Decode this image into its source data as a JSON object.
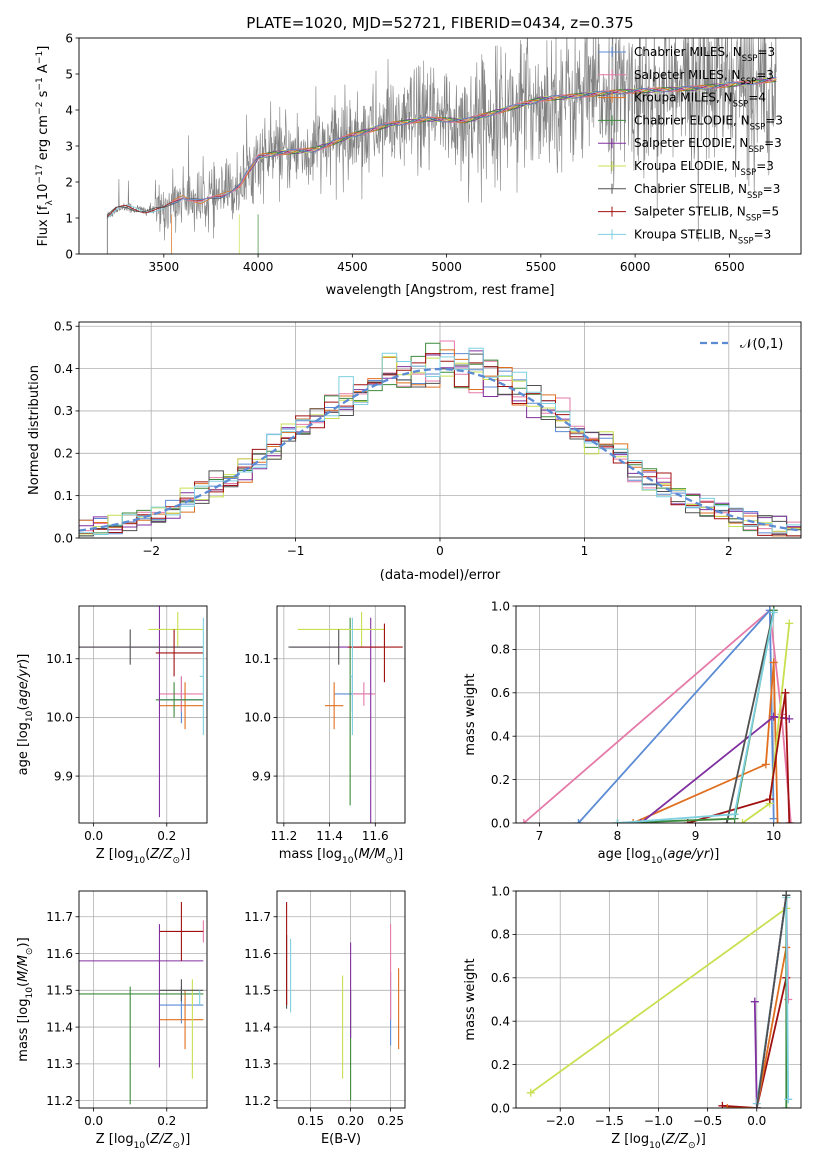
{
  "colors": {
    "chabrier_miles": "#5b8bd4",
    "salpeter_miles": "#e57aa8",
    "kroupa_miles": "#e07020",
    "chabrier_elodie": "#3c8a3c",
    "salpeter_elodie": "#8030a0",
    "kroupa_elodie": "#c8e050",
    "chabrier_stelib": "#505050",
    "salpeter_stelib": "#a01010",
    "kroupa_stelib": "#7fd0e0",
    "gaussian": "#5b8bd4",
    "spectrum": "#808080"
  },
  "legend_entries": [
    {
      "text": "Chabrier MILES, N",
      "sub": "SSP",
      "tail": "=3",
      "color_key": "chabrier_miles"
    },
    {
      "text": "Salpeter MILES, N",
      "sub": "SSP",
      "tail": "=3",
      "color_key": "salpeter_miles"
    },
    {
      "text": "Kroupa MILES, N",
      "sub": "SSP",
      "tail": "=4",
      "color_key": "kroupa_miles"
    },
    {
      "text": "Chabrier ELODIE, N",
      "sub": "SSP",
      "tail": "=3",
      "color_key": "chabrier_elodie"
    },
    {
      "text": "Salpeter ELODIE, N",
      "sub": "SSP",
      "tail": "=3",
      "color_key": "salpeter_elodie"
    },
    {
      "text": "Kroupa ELODIE, N",
      "sub": "SSP",
      "tail": "=3",
      "color_key": "kroupa_elodie"
    },
    {
      "text": "Chabrier STELIB, N",
      "sub": "SSP",
      "tail": "=3",
      "color_key": "chabrier_stelib"
    },
    {
      "text": "Salpeter STELIB, N",
      "sub": "SSP",
      "tail": "=5",
      "color_key": "salpeter_stelib"
    },
    {
      "text": "Kroupa STELIB, N",
      "sub": "SSP",
      "tail": "=3",
      "color_key": "kroupa_stelib"
    }
  ],
  "chart_data": [
    {
      "id": "spectrum",
      "type": "line",
      "title": "PLATE=1020, MJD=52721, FIBERID=0434, z=0.375",
      "xlabel": "wavelength [Angstrom, rest frame]",
      "ylabel_parts": [
        "Flux [f",
        "λ",
        "10",
        "−17",
        " erg cm",
        "−2",
        " s",
        "−1",
        " A",
        "−1",
        "]"
      ],
      "xlim": [
        3050,
        6880
      ],
      "ylim": [
        0,
        6
      ],
      "xticks": [
        3500,
        4000,
        4500,
        5000,
        5500,
        6000,
        6500
      ],
      "yticks": [
        0,
        1,
        2,
        3,
        4,
        5,
        6
      ],
      "continuum_x": [
        3200,
        3250,
        3300,
        3400,
        3500,
        3600,
        3700,
        3800,
        3900,
        4000,
        4100,
        4300,
        4500,
        4700,
        4900,
        5100,
        5300,
        5500,
        5700,
        5900,
        6100,
        6300,
        6500,
        6750
      ],
      "continuum_y": [
        1.05,
        1.25,
        1.3,
        1.2,
        1.25,
        1.6,
        1.45,
        1.6,
        1.9,
        2.7,
        2.8,
        2.9,
        3.3,
        3.6,
        3.75,
        3.7,
        4.0,
        4.3,
        4.4,
        4.5,
        4.55,
        4.6,
        4.7,
        4.85
      ],
      "grid": false
    },
    {
      "id": "residuals",
      "type": "histogram",
      "xlabel": "(data-model)/error",
      "ylabel": "Normed distribution",
      "xlim": [
        -2.5,
        2.5
      ],
      "ylim": [
        0,
        0.51
      ],
      "xticks": [
        -2,
        -1,
        0,
        1,
        2
      ],
      "yticks": [
        0.0,
        0.1,
        0.2,
        0.3,
        0.4,
        0.5
      ],
      "bin_width": 0.1,
      "legend": "𝒩(0,1)",
      "legend_placement": "top-right",
      "grid": true
    },
    {
      "id": "age-vs-Z",
      "type": "errorbar",
      "xlabel": "Z [log10(Z/Z⊙)]",
      "ylabel": "age  [log10(age/yr)]",
      "xlim": [
        -0.04,
        0.31
      ],
      "ylim": [
        9.82,
        10.19
      ],
      "xticks": [
        0.0,
        0.2
      ],
      "yticks": [
        9.9,
        10.0,
        10.1
      ],
      "points": [
        {
          "key": "chabrier_miles",
          "x": 0.24,
          "xerr": [
            0.06,
            0.06
          ],
          "y": 10.03,
          "yerr": [
            0.04,
            0.04
          ]
        },
        {
          "key": "salpeter_miles",
          "x": 0.24,
          "xerr": [
            0.06,
            0.06
          ],
          "y": 10.04,
          "yerr": [
            0.03,
            0.03
          ]
        },
        {
          "key": "kroupa_miles",
          "x": 0.25,
          "xerr": [
            0.07,
            0.05
          ],
          "y": 10.02,
          "yerr": [
            0.04,
            0.04
          ]
        },
        {
          "key": "chabrier_elodie",
          "x": 0.22,
          "xerr": [
            0.05,
            0.08
          ],
          "y": 10.03,
          "yerr": [
            0.03,
            0.03
          ]
        },
        {
          "key": "salpeter_elodie",
          "x": 0.18,
          "xerr": [
            0.27,
            0.12
          ],
          "y": 10.12,
          "yerr": [
            0.29,
            0.07
          ]
        },
        {
          "key": "kroupa_elodie",
          "x": 0.23,
          "xerr": [
            0.08,
            0.07
          ],
          "y": 10.15,
          "yerr": [
            0.03,
            0.03
          ]
        },
        {
          "key": "chabrier_stelib",
          "x": 0.1,
          "xerr": [
            0.14,
            0.2
          ],
          "y": 10.12,
          "yerr": [
            0.03,
            0.03
          ]
        },
        {
          "key": "salpeter_stelib",
          "x": 0.22,
          "xerr": [
            0.05,
            0.08
          ],
          "y": 10.11,
          "yerr": [
            0.04,
            0.04
          ]
        },
        {
          "key": "kroupa_stelib",
          "x": 0.3,
          "xerr": [
            0.01,
            0.0
          ],
          "y": 10.07,
          "yerr": [
            0.1,
            0.1
          ]
        }
      ],
      "grid": true
    },
    {
      "id": "age-vs-mass",
      "type": "errorbar",
      "xlabel": "mass [log10(M/M⊙)]",
      "ylabel": "",
      "xlim": [
        11.17,
        11.73
      ],
      "ylim": [
        9.82,
        10.19
      ],
      "xticks": [
        11.2,
        11.4,
        11.6
      ],
      "yticks": [
        9.9,
        10.0,
        10.1
      ],
      "points": [
        {
          "key": "chabrier_miles",
          "x": 11.5,
          "xerr": [
            0.08,
            0.08
          ],
          "y": 10.04,
          "yerr": [
            0.03,
            0.03
          ]
        },
        {
          "key": "salpeter_miles",
          "x": 11.55,
          "xerr": [
            0.05,
            0.05
          ],
          "y": 10.04,
          "yerr": [
            0.02,
            0.02
          ]
        },
        {
          "key": "kroupa_miles",
          "x": 11.42,
          "xerr": [
            0.04,
            0.04
          ],
          "y": 10.02,
          "yerr": [
            0.04,
            0.04
          ]
        },
        {
          "key": "chabrier_elodie",
          "x": 11.49,
          "xerr": [
            0.0,
            0.0
          ],
          "y": 10.03,
          "yerr": [
            0.18,
            0.14
          ]
        },
        {
          "key": "salpeter_elodie",
          "x": 11.58,
          "xerr": [
            0.35,
            0.05
          ],
          "y": 10.12,
          "yerr": [
            0.3,
            0.05
          ]
        },
        {
          "key": "kroupa_elodie",
          "x": 11.54,
          "xerr": [
            0.28,
            0.1
          ],
          "y": 10.15,
          "yerr": [
            0.03,
            0.03
          ]
        },
        {
          "key": "chabrier_stelib",
          "x": 11.44,
          "xerr": [
            0.22,
            0.0
          ],
          "y": 10.12,
          "yerr": [
            0.03,
            0.03
          ]
        },
        {
          "key": "salpeter_stelib",
          "x": 11.64,
          "xerr": [
            0.16,
            0.08
          ],
          "y": 10.12,
          "yerr": [
            0.06,
            0.04
          ]
        },
        {
          "key": "kroupa_stelib",
          "x": 11.5,
          "xerr": [
            0.01,
            0.0
          ],
          "y": 10.07,
          "yerr": [
            0.1,
            0.1
          ]
        }
      ],
      "grid": true
    },
    {
      "id": "weight-vs-age",
      "type": "line",
      "xlabel": "age  [log10(age/yr)]",
      "ylabel": "mass weight",
      "xlim": [
        6.7,
        10.35
      ],
      "ylim": [
        0,
        1.0
      ],
      "xticks": [
        7,
        8,
        9,
        10
      ],
      "yticks": [
        0.0,
        0.2,
        0.4,
        0.6,
        0.8,
        1.0
      ],
      "series": [
        {
          "key": "salpeter_miles",
          "x": [
            6.8,
            9.95,
            10.1,
            10.22
          ],
          "y": [
            0.0,
            0.98,
            0.5,
            0.0
          ]
        },
        {
          "key": "chabrier_miles",
          "x": [
            7.5,
            9.95,
            10.0
          ],
          "y": [
            0.0,
            0.98,
            0.02
          ]
        },
        {
          "key": "kroupa_miles",
          "x": [
            8.2,
            9.9,
            10.0,
            10.05
          ],
          "y": [
            0.0,
            0.27,
            0.74,
            0.0
          ]
        },
        {
          "key": "salpeter_elodie",
          "x": [
            8.3,
            10.0,
            10.2
          ],
          "y": [
            0.0,
            0.49,
            0.48
          ]
        },
        {
          "key": "kroupa_elodie",
          "x": [
            9.6,
            9.95,
            10.2
          ],
          "y": [
            0.0,
            0.09,
            0.92
          ]
        },
        {
          "key": "salpeter_stelib",
          "x": [
            8.9,
            9.95,
            10.15,
            10.2
          ],
          "y": [
            0.0,
            0.11,
            0.6,
            0.0
          ]
        },
        {
          "key": "chabrier_stelib",
          "x": [
            9.4,
            10.0
          ],
          "y": [
            0.0,
            0.98
          ]
        },
        {
          "key": "chabrier_elodie",
          "x": [
            8.0,
            9.5,
            10.0
          ],
          "y": [
            0.0,
            0.02,
            0.98
          ]
        },
        {
          "key": "kroupa_stelib",
          "x": [
            8.0,
            9.5,
            10.0
          ],
          "y": [
            0.0,
            0.04,
            0.97
          ]
        }
      ],
      "grid": true
    },
    {
      "id": "mass-vs-Z",
      "type": "errorbar",
      "xlabel": "Z [log10(Z/Z⊙)]",
      "ylabel": "mass [log10(M/M⊙)]",
      "xlim": [
        -0.04,
        0.31
      ],
      "ylim": [
        11.18,
        11.77
      ],
      "xticks": [
        0.0,
        0.2
      ],
      "yticks": [
        11.2,
        11.3,
        11.4,
        11.5,
        11.6,
        11.7
      ],
      "points": [
        {
          "key": "chabrier_miles",
          "x": 0.24,
          "xerr": [
            0.06,
            0.06
          ],
          "y": 11.46,
          "yerr": [
            0.05,
            0.05
          ]
        },
        {
          "key": "salpeter_miles",
          "x": 0.3,
          "xerr": [
            0.01,
            0.0
          ],
          "y": 11.66,
          "yerr": [
            0.03,
            0.03
          ]
        },
        {
          "key": "kroupa_miles",
          "x": 0.25,
          "xerr": [
            0.07,
            0.05
          ],
          "y": 11.42,
          "yerr": [
            0.08,
            0.08
          ]
        },
        {
          "key": "chabrier_elodie",
          "x": 0.1,
          "xerr": [
            0.14,
            0.2
          ],
          "y": 11.49,
          "yerr": [
            0.3,
            0.02
          ]
        },
        {
          "key": "salpeter_elodie",
          "x": 0.18,
          "xerr": [
            0.27,
            0.12
          ],
          "y": 11.58,
          "yerr": [
            0.29,
            0.1
          ]
        },
        {
          "key": "kroupa_elodie",
          "x": 0.27,
          "xerr": [
            0.0,
            0.0
          ],
          "y": 11.4,
          "yerr": [
            0.14,
            0.13
          ]
        },
        {
          "key": "chabrier_stelib",
          "x": 0.24,
          "xerr": [
            0.06,
            0.06
          ],
          "y": 11.5,
          "yerr": [
            0.03,
            0.03
          ]
        },
        {
          "key": "salpeter_stelib",
          "x": 0.24,
          "xerr": [
            0.06,
            0.06
          ],
          "y": 11.66,
          "yerr": [
            0.08,
            0.08
          ]
        },
        {
          "key": "kroupa_stelib",
          "x": 0.29,
          "xerr": [
            0.0,
            0.0
          ],
          "y": 11.48,
          "yerr": [
            0.02,
            0.02
          ]
        }
      ],
      "grid": true
    },
    {
      "id": "mass-vs-ebv",
      "type": "errorbar",
      "xlabel": "E(B-V)",
      "ylabel": "",
      "xlim": [
        0.108,
        0.268
      ],
      "ylim": [
        11.18,
        11.77
      ],
      "xticks": [
        0.15,
        0.2,
        0.25
      ],
      "yticks": [
        11.2,
        11.3,
        11.4,
        11.5,
        11.6,
        11.7
      ],
      "points": [
        {
          "key": "chabrier_miles",
          "x": 0.25,
          "xerr": [
            0.0,
            0.0
          ],
          "y": 11.45,
          "yerr": [
            0.1,
            0.1
          ]
        },
        {
          "key": "salpeter_miles",
          "x": 0.25,
          "xerr": [
            0.0,
            0.0
          ],
          "y": 11.55,
          "yerr": [
            0.13,
            0.13
          ]
        },
        {
          "key": "kroupa_miles",
          "x": 0.26,
          "xerr": [
            0.0,
            0.0
          ],
          "y": 11.45,
          "yerr": [
            0.11,
            0.11
          ]
        },
        {
          "key": "chabrier_elodie",
          "x": 0.2,
          "xerr": [
            0.0,
            0.0
          ],
          "y": 11.35,
          "yerr": [
            0.15,
            0.15
          ]
        },
        {
          "key": "salpeter_elodie",
          "x": 0.2,
          "xerr": [
            0.0,
            0.0
          ],
          "y": 11.5,
          "yerr": [
            0.13,
            0.13
          ]
        },
        {
          "key": "kroupa_elodie",
          "x": 0.19,
          "xerr": [
            0.0,
            0.0
          ],
          "y": 11.4,
          "yerr": [
            0.14,
            0.14
          ]
        },
        {
          "key": "chabrier_stelib",
          "x": 0.12,
          "xerr": [
            0.0,
            0.0
          ],
          "y": 11.55,
          "yerr": [
            0.1,
            0.1
          ]
        },
        {
          "key": "salpeter_stelib",
          "x": 0.12,
          "xerr": [
            0.0,
            0.0
          ],
          "y": 11.6,
          "yerr": [
            0.14,
            0.14
          ]
        },
        {
          "key": "kroupa_stelib",
          "x": 0.125,
          "xerr": [
            0.0,
            0.0
          ],
          "y": 11.54,
          "yerr": [
            0.1,
            0.1
          ]
        }
      ],
      "grid": true
    },
    {
      "id": "weight-vs-Z",
      "type": "line",
      "xlabel": "Z [log10(Z/Z⊙)]",
      "ylabel": "mass weight",
      "xlim": [
        -2.45,
        0.45
      ],
      "ylim": [
        0,
        1.0
      ],
      "xticks": [
        -2.0,
        -1.5,
        -1.0,
        -0.5,
        0.0
      ],
      "yticks": [
        0.0,
        0.2,
        0.4,
        0.6,
        0.8,
        1.0
      ],
      "series": [
        {
          "key": "kroupa_elodie",
          "x": [
            -2.3,
            0.3
          ],
          "y": [
            0.07,
            0.92
          ]
        },
        {
          "key": "salpeter_elodie",
          "x": [
            -0.02,
            0.0,
            0.3
          ],
          "y": [
            0.49,
            0.0,
            0.98
          ]
        },
        {
          "key": "salpeter_stelib",
          "x": [
            -0.35,
            0.0,
            0.3
          ],
          "y": [
            0.01,
            0.0,
            0.6
          ]
        },
        {
          "key": "kroupa_miles",
          "x": [
            -0.3,
            0.0,
            0.3
          ],
          "y": [
            0.0,
            0.0,
            0.74
          ]
        },
        {
          "key": "salpeter_miles",
          "x": [
            0.0,
            0.3,
            0.32
          ],
          "y": [
            0.0,
            0.98,
            0.5
          ]
        },
        {
          "key": "chabrier_miles",
          "x": [
            0.0,
            0.3
          ],
          "y": [
            0.0,
            0.98
          ]
        },
        {
          "key": "chabrier_elodie",
          "x": [
            0.3,
            0.3
          ],
          "y": [
            0.0,
            0.98
          ]
        },
        {
          "key": "kroupa_stelib",
          "x": [
            0.0,
            0.3,
            0.32
          ],
          "y": [
            0.02,
            0.97,
            0.04
          ]
        },
        {
          "key": "chabrier_stelib",
          "x": [
            0.0,
            0.3
          ],
          "y": [
            0.0,
            0.98
          ]
        }
      ],
      "grid": true
    }
  ]
}
